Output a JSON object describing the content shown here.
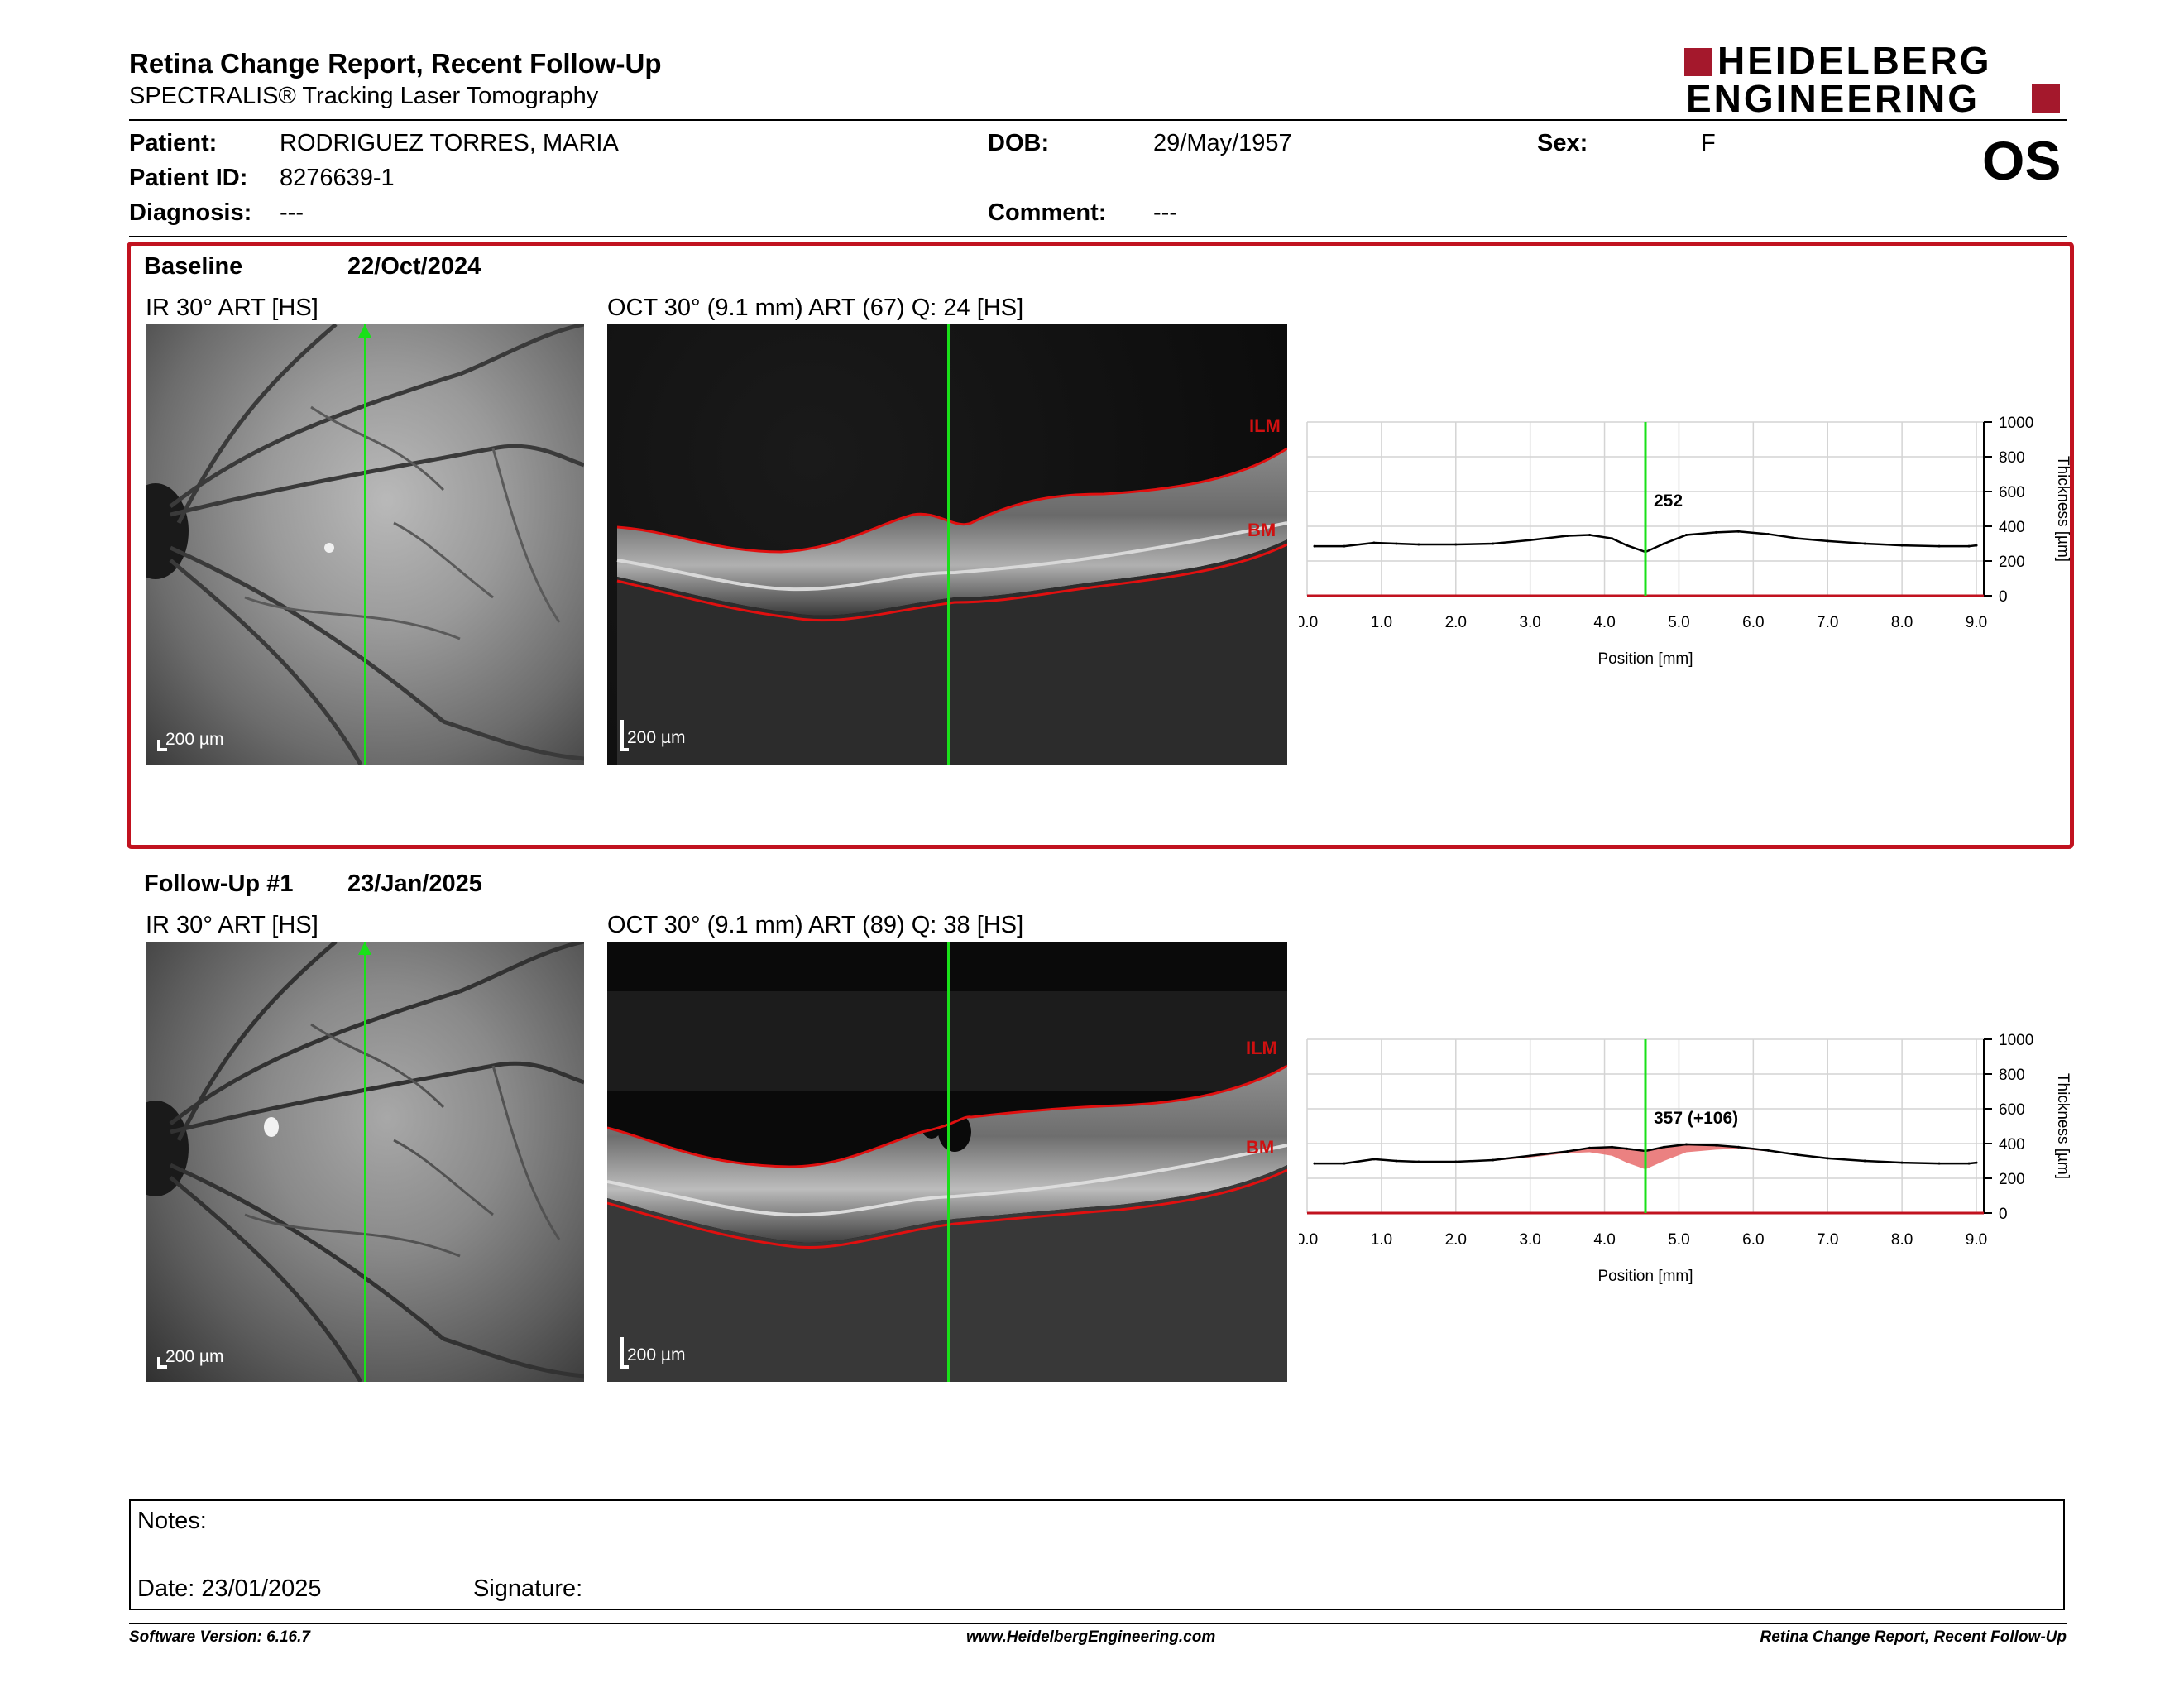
{
  "report": {
    "title": "Retina Change Report, Recent Follow-Up",
    "subtitle": "SPECTRALIS® Tracking Laser Tomography",
    "logo_line1": "HEIDELBERG",
    "logo_line2": "ENGINEERING",
    "eye": "OS"
  },
  "patient": {
    "name_label": "Patient:",
    "name": "RODRIGUEZ TORRES, MARIA",
    "id_label": "Patient ID:",
    "id": "8276639-1",
    "diagnosis_label": "Diagnosis:",
    "diagnosis": "---",
    "dob_label": "DOB:",
    "dob": "29/May/1957",
    "comment_label": "Comment:",
    "comment": "---",
    "sex_label": "Sex:",
    "sex": "F"
  },
  "baseline": {
    "label": "Baseline",
    "date": "22/Oct/2024",
    "ir_title": "IR 30° ART [HS]",
    "oct_title": "OCT 30° (9.1 mm) ART (67) Q: 24 [HS]",
    "scale": "200 µm",
    "ilm_label": "ILM",
    "bm_label": "BM",
    "chart_label": "252"
  },
  "followup": {
    "label": "Follow-Up #1",
    "date": "23/Jan/2025",
    "ir_title": "IR 30° ART [HS]",
    "oct_title": "OCT 30° (9.1 mm) ART (89) Q: 38 [HS]",
    "scale": "200 µm",
    "ilm_label": "ILM",
    "bm_label": "BM",
    "chart_label": "357 (+106)"
  },
  "chart_data": [
    {
      "type": "line",
      "xlabel": "Position [mm]",
      "ylabel": "Thickness [µm]",
      "xlim": [
        0,
        9.1
      ],
      "ylim": [
        0,
        1000
      ],
      "x_ticks": [
        "0.0",
        "1.0",
        "2.0",
        "3.0",
        "4.0",
        "5.0",
        "6.0",
        "7.0",
        "8.0",
        "9.0"
      ],
      "y_ticks": [
        "0",
        "200",
        "400",
        "600",
        "800",
        "1000"
      ],
      "grid": true,
      "marker_x": 4.55,
      "marker_label": "252",
      "series": [
        {
          "x": [
            0.1,
            0.5,
            0.9,
            1.2,
            1.5,
            2.0,
            2.5,
            3.0,
            3.5,
            3.8,
            4.1,
            4.3,
            4.55,
            4.8,
            5.1,
            5.5,
            5.8,
            6.2,
            6.6,
            7.0,
            7.5,
            8.0,
            8.5,
            8.9,
            9.0
          ],
          "y": [
            285,
            285,
            305,
            300,
            295,
            295,
            300,
            320,
            345,
            350,
            330,
            290,
            252,
            300,
            350,
            365,
            370,
            355,
            330,
            315,
            300,
            290,
            285,
            285,
            290
          ]
        }
      ]
    },
    {
      "type": "area",
      "xlabel": "Position [mm]",
      "ylabel": "Thickness [µm]",
      "xlim": [
        0,
        9.1
      ],
      "ylim": [
        0,
        1000
      ],
      "x_ticks": [
        "0.0",
        "1.0",
        "2.0",
        "3.0",
        "4.0",
        "5.0",
        "6.0",
        "7.0",
        "8.0",
        "9.0"
      ],
      "y_ticks": [
        "0",
        "200",
        "400",
        "600",
        "800",
        "1000"
      ],
      "grid": true,
      "marker_x": 4.55,
      "marker_label": "357 (+106)",
      "series": [
        {
          "x": [
            0.1,
            0.5,
            0.9,
            1.2,
            1.5,
            2.0,
            2.5,
            3.0,
            3.5,
            3.8,
            4.1,
            4.3,
            4.55,
            4.8,
            5.1,
            5.5,
            5.8,
            6.2,
            6.6,
            7.0,
            7.5,
            8.0,
            8.5,
            8.9,
            9.0
          ],
          "y": [
            285,
            285,
            310,
            300,
            295,
            295,
            305,
            330,
            355,
            375,
            380,
            370,
            357,
            380,
            395,
            390,
            380,
            360,
            335,
            315,
            300,
            290,
            285,
            285,
            290
          ]
        }
      ]
    }
  ],
  "notes": {
    "label": "Notes:",
    "date": "Date: 23/01/2025",
    "signature": "Signature:"
  },
  "footer": {
    "version": "Software Version: 6.16.7",
    "website": "www.HeidelbergEngineering.com",
    "report_name": "Retina Change Report, Recent Follow-Up"
  }
}
